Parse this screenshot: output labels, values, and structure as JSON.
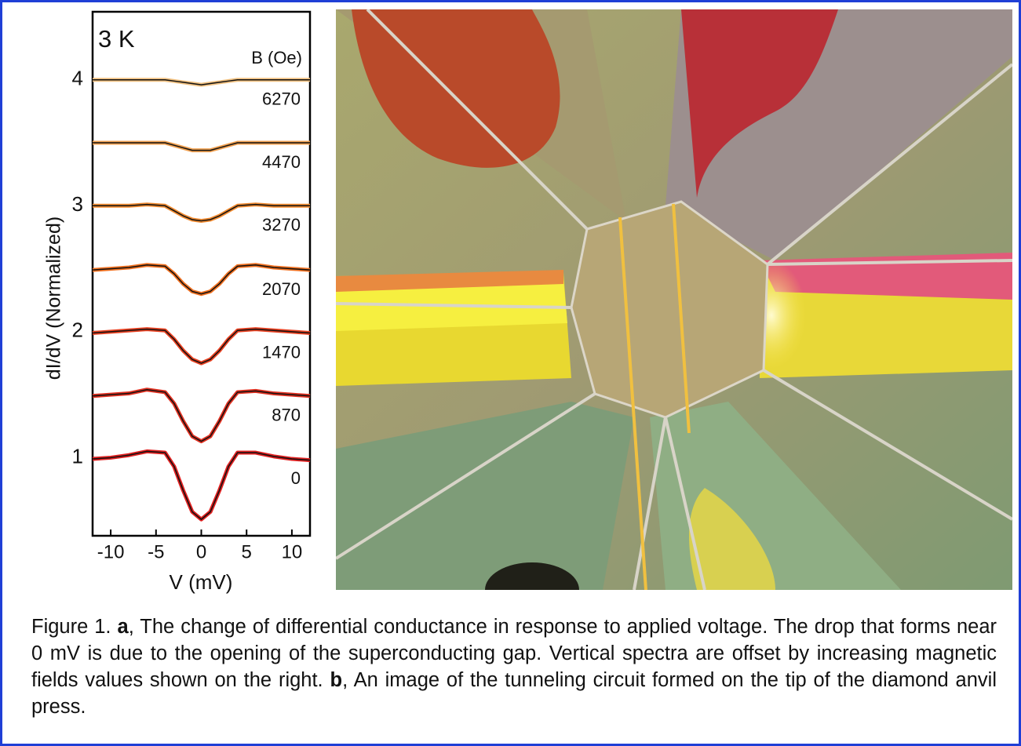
{
  "chart_data": {
    "type": "line",
    "title": "3 K",
    "legend_title": "B (Oe)",
    "x_label": "V (mV)",
    "y_label": "dI/dV (Normalized)",
    "x": [
      -12,
      -10,
      -8,
      -6,
      -4,
      -3,
      -2,
      -1,
      0,
      1,
      2,
      3,
      4,
      6,
      8,
      10,
      12
    ],
    "series": [
      {
        "name": "6270",
        "color": "#f0c080",
        "values": [
          4.0,
          4.0,
          4.0,
          4.0,
          4.0,
          3.99,
          3.98,
          3.97,
          3.96,
          3.97,
          3.98,
          3.99,
          4.0,
          4.0,
          4.0,
          4.0,
          4.0
        ]
      },
      {
        "name": "4470",
        "color": "#f0a050",
        "values": [
          3.5,
          3.5,
          3.5,
          3.5,
          3.5,
          3.48,
          3.46,
          3.44,
          3.44,
          3.44,
          3.46,
          3.48,
          3.5,
          3.5,
          3.5,
          3.5,
          3.5
        ]
      },
      {
        "name": "3270",
        "color": "#f08a30",
        "values": [
          3.0,
          3.0,
          3.0,
          3.01,
          3.0,
          2.96,
          2.92,
          2.89,
          2.88,
          2.89,
          2.92,
          2.96,
          3.0,
          3.01,
          3.0,
          3.0,
          3.0
        ]
      },
      {
        "name": "2070",
        "color": "#f07020",
        "values": [
          2.49,
          2.5,
          2.51,
          2.53,
          2.52,
          2.46,
          2.38,
          2.32,
          2.3,
          2.32,
          2.38,
          2.46,
          2.52,
          2.53,
          2.51,
          2.5,
          2.49
        ]
      },
      {
        "name": "1470",
        "color": "#e84020",
        "values": [
          1.99,
          2.0,
          2.01,
          2.02,
          2.01,
          1.94,
          1.85,
          1.78,
          1.75,
          1.78,
          1.85,
          1.94,
          2.01,
          2.02,
          2.01,
          2.0,
          1.99
        ]
      },
      {
        "name": "870",
        "color": "#e03020",
        "values": [
          1.49,
          1.5,
          1.51,
          1.54,
          1.52,
          1.43,
          1.29,
          1.17,
          1.13,
          1.17,
          1.29,
          1.43,
          1.52,
          1.53,
          1.51,
          1.5,
          1.49
        ]
      },
      {
        "name": "0",
        "color": "#e02020",
        "values": [
          0.99,
          1.0,
          1.02,
          1.05,
          1.04,
          0.93,
          0.74,
          0.57,
          0.51,
          0.57,
          0.74,
          0.93,
          1.04,
          1.04,
          1.01,
          0.99,
          0.98
        ]
      }
    ],
    "xlim": [
      -12,
      12
    ],
    "xticks": [
      -10,
      -5,
      0,
      5,
      10
    ],
    "ylim": [
      0.38,
      4.54
    ],
    "yticks": [
      1,
      2,
      3,
      4
    ]
  },
  "caption": [
    "Figure 1. ",
    "a",
    ", The change of differential conductance in response to applied voltage. The drop that forms near 0 mV is due to the opening of the superconducting gap. Vertical spectra are offset by increasing magnetic fields values shown on the right. ",
    "b",
    ", An image of the tunneling circuit formed on the tip of the diamond anvil press."
  ]
}
